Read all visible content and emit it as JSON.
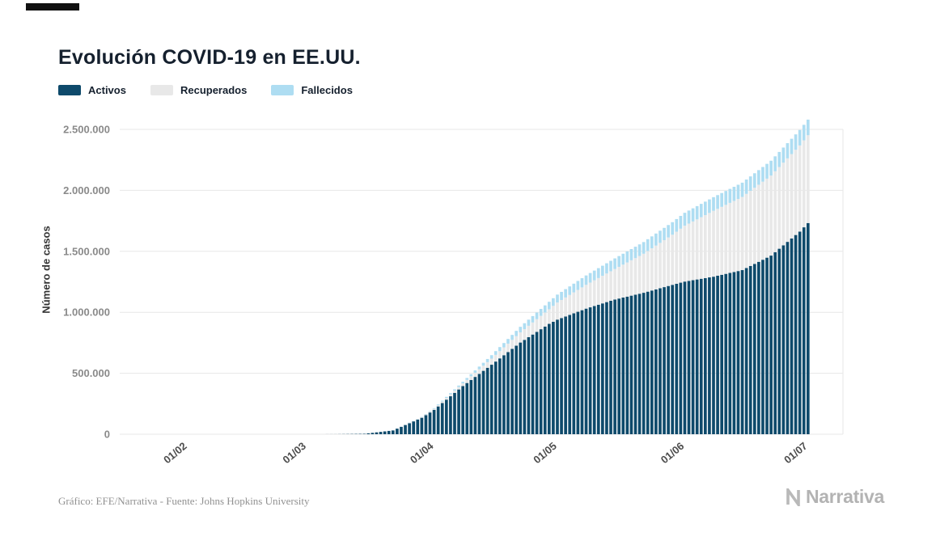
{
  "header": {
    "title": "Evolución COVID-19 en EE.UU."
  },
  "footer": {
    "credit": "Gráfico: EFE/Narrativa - Fuente: Johns Hopkins University",
    "brand": "Narrativa"
  },
  "chart_data": {
    "type": "bar",
    "stacked": true,
    "title": "Evolución COVID-19 en EE.UU.",
    "xlabel": "",
    "ylabel": "Número de casos",
    "ylim": [
      0,
      2500000
    ],
    "grid": "horizontal",
    "legend_position": "top-left",
    "days_domain": 176,
    "series": [
      {
        "name": "Activos",
        "key": "activos",
        "color": "#0e4a6b"
      },
      {
        "name": "Recuperados",
        "key": "recuperados",
        "color": "#e8e8e8"
      },
      {
        "name": "Fallecidos",
        "key": "fallecidos",
        "color": "#aeddf2"
      }
    ],
    "y_ticks": [
      {
        "value": 0,
        "label": "0"
      },
      {
        "value": 500000,
        "label": "500.000"
      },
      {
        "value": 1000000,
        "label": "1.000.000"
      },
      {
        "value": 1500000,
        "label": "1.500.000"
      },
      {
        "value": 2000000,
        "label": "2.000.000"
      },
      {
        "value": 2500000,
        "label": "2.500.000"
      }
    ],
    "x_ticks": [
      {
        "day": 16,
        "label": "01/02"
      },
      {
        "day": 45,
        "label": "01/03"
      },
      {
        "day": 76,
        "label": "01/04"
      },
      {
        "day": 106,
        "label": "01/05"
      },
      {
        "day": 137,
        "label": "01/06"
      },
      {
        "day": 167,
        "label": "01/07"
      }
    ],
    "anchors": [
      {
        "day": 6,
        "date": "22/01",
        "activos": 1,
        "recuperados": 0,
        "fallecidos": 0
      },
      {
        "day": 16,
        "date": "01/02",
        "activos": 7,
        "recuperados": 0,
        "fallecidos": 0
      },
      {
        "day": 45,
        "date": "01/03",
        "activos": 62,
        "recuperados": 7,
        "fallecidos": 1
      },
      {
        "day": 52,
        "date": "08/03",
        "activos": 470,
        "recuperados": 15,
        "fallecidos": 22
      },
      {
        "day": 59,
        "date": "15/03",
        "activos": 3400,
        "recuperados": 60,
        "fallecidos": 68
      },
      {
        "day": 66,
        "date": "22/03",
        "activos": 31000,
        "recuperados": 180,
        "fallecidos": 420
      },
      {
        "day": 73,
        "date": "29/03",
        "activos": 135000,
        "recuperados": 4600,
        "fallecidos": 2500
      },
      {
        "day": 76,
        "date": "01/04",
        "activos": 200000,
        "recuperados": 8500,
        "fallecidos": 5100
      },
      {
        "day": 83,
        "date": "08/04",
        "activos": 395000,
        "recuperados": 22000,
        "fallecidos": 13000
      },
      {
        "day": 90,
        "date": "15/04",
        "activos": 570000,
        "recuperados": 50000,
        "fallecidos": 28300
      },
      {
        "day": 97,
        "date": "22/04",
        "activos": 752000,
        "recuperados": 83000,
        "fallecidos": 46000
      },
      {
        "day": 104,
        "date": "29/04",
        "activos": 905000,
        "recuperados": 120000,
        "fallecidos": 61000
      },
      {
        "day": 106,
        "date": "01/05",
        "activos": 940000,
        "recuperados": 140000,
        "fallecidos": 65000
      },
      {
        "day": 113,
        "date": "08/05",
        "activos": 1030000,
        "recuperados": 195000,
        "fallecidos": 77000
      },
      {
        "day": 120,
        "date": "15/05",
        "activos": 1105000,
        "recuperados": 250000,
        "fallecidos": 87000
      },
      {
        "day": 127,
        "date": "22/05",
        "activos": 1160000,
        "recuperados": 320000,
        "fallecidos": 96000
      },
      {
        "day": 134,
        "date": "29/05",
        "activos": 1225000,
        "recuperados": 411000,
        "fallecidos": 103000
      },
      {
        "day": 137,
        "date": "01/06",
        "activos": 1252000,
        "recuperados": 458000,
        "fallecidos": 106000
      },
      {
        "day": 144,
        "date": "08/06",
        "activos": 1292000,
        "recuperados": 540000,
        "fallecidos": 112000
      },
      {
        "day": 151,
        "date": "15/06",
        "activos": 1346000,
        "recuperados": 600000,
        "fallecidos": 117000
      },
      {
        "day": 158,
        "date": "22/06",
        "activos": 1465000,
        "recuperados": 656000,
        "fallecidos": 122000
      },
      {
        "day": 165,
        "date": "29/06",
        "activos": 1662000,
        "recuperados": 706000,
        "fallecidos": 127000
      },
      {
        "day": 167,
        "date": "01/07",
        "activos": 1732000,
        "recuperados": 720000,
        "fallecidos": 128000
      }
    ]
  }
}
